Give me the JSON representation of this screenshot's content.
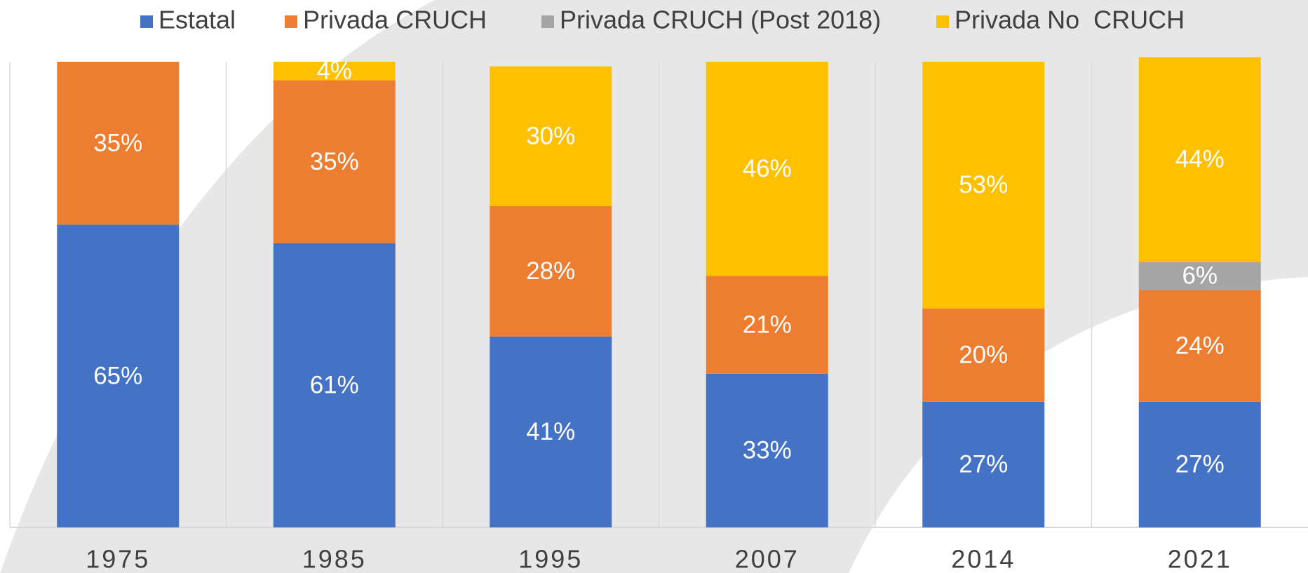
{
  "chart_data": {
    "type": "stacked_bar",
    "categories": [
      "1975",
      "1985",
      "1995",
      "2007",
      "2014",
      "2021"
    ],
    "series": [
      {
        "name": "Estatal",
        "color": "#4472c4",
        "values": [
          65,
          61,
          41,
          33,
          27,
          27
        ],
        "value_labels": [
          "65%",
          "61%",
          "41%",
          "33%",
          "27%",
          "27%"
        ]
      },
      {
        "name": "Privada CRUCH",
        "color": "#ed7d31",
        "values": [
          35,
          35,
          28,
          21,
          20,
          24
        ],
        "value_labels": [
          "35%",
          "35%",
          "28%",
          "21%",
          "20%",
          "24%"
        ]
      },
      {
        "name": "Privada CRUCH (Post 2018)",
        "color": "#a5a5a5",
        "values": [
          null,
          null,
          null,
          null,
          null,
          6
        ],
        "value_labels": [
          null,
          null,
          null,
          null,
          null,
          "6%"
        ]
      },
      {
        "name": "Privada No  CRUCH",
        "color": "#ffc000",
        "values": [
          null,
          4,
          30,
          46,
          53,
          44
        ],
        "value_labels": [
          null,
          "4%",
          "30%",
          "46%",
          "53%",
          "44%"
        ]
      }
    ],
    "ylim": [
      0,
      100
    ],
    "legend": "top"
  }
}
